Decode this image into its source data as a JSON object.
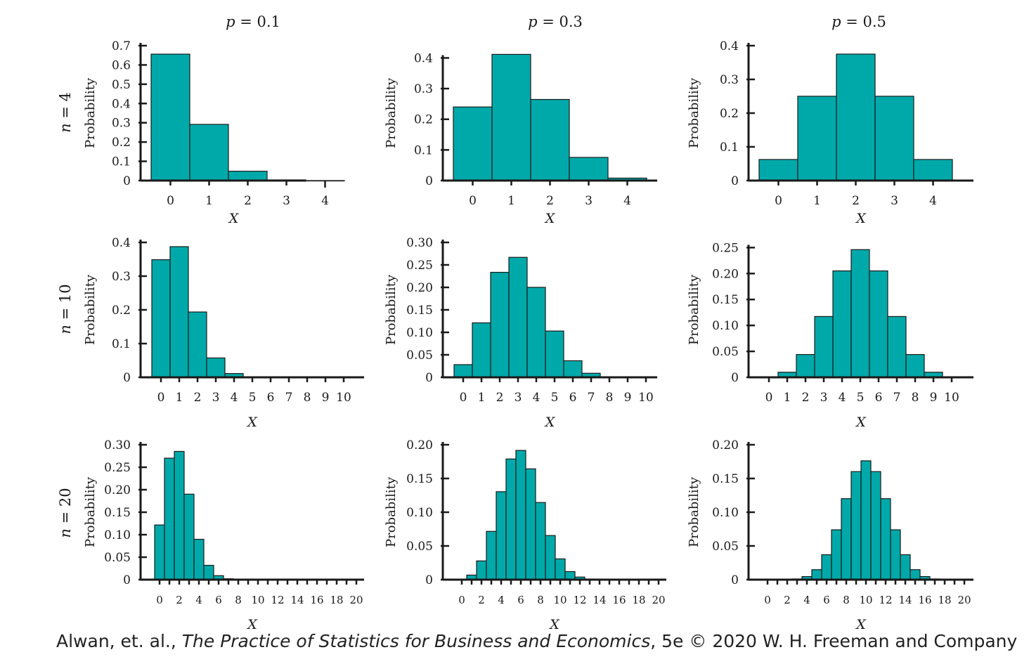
{
  "colors": {
    "bar": "#00a9a9",
    "edge": "#1a1a1a",
    "axis": "#1a1a1a",
    "text": "#1a1a1a"
  },
  "column_headers": [
    {
      "var": "p",
      "value": "0.1"
    },
    {
      "var": "p",
      "value": "0.3"
    },
    {
      "var": "p",
      "value": "0.5"
    }
  ],
  "row_headers": [
    {
      "var": "n",
      "value": "4"
    },
    {
      "var": "n",
      "value": "10"
    },
    {
      "var": "n",
      "value": "20"
    }
  ],
  "credit": {
    "authors": "Alwan, et. al., ",
    "book": "The Practice of Statistics for Business and Economics",
    "edition": ", 5e © 2020 W. H. Freeman and Company"
  },
  "chart_data": [
    {
      "type": "bar",
      "n": 4,
      "p": 0.1,
      "xlabel": "X",
      "ylabel": "Probability",
      "x": [
        0,
        1,
        2,
        3,
        4
      ],
      "values": [
        0.6561,
        0.2916,
        0.0486,
        0.0036,
        0.0001
      ],
      "ylim": [
        0,
        0.7
      ],
      "yticks": [
        "0",
        "0.1",
        "0.2",
        "0.3",
        "0.4",
        "0.5",
        "0.6",
        "0.7"
      ],
      "xticks": [
        "0",
        "1",
        "2",
        "3",
        "4"
      ]
    },
    {
      "type": "bar",
      "n": 4,
      "p": 0.3,
      "xlabel": "X",
      "ylabel": "Probability",
      "x": [
        0,
        1,
        2,
        3,
        4
      ],
      "values": [
        0.2401,
        0.4116,
        0.2646,
        0.0756,
        0.0081
      ],
      "ylim": [
        0,
        0.44
      ],
      "yticks": [
        "0",
        "0.1",
        "0.2",
        "0.3",
        "0.4"
      ],
      "xticks": [
        "0",
        "1",
        "2",
        "3",
        "4"
      ]
    },
    {
      "type": "bar",
      "n": 4,
      "p": 0.5,
      "xlabel": "X",
      "ylabel": "Probability",
      "x": [
        0,
        1,
        2,
        3,
        4
      ],
      "values": [
        0.0625,
        0.25,
        0.375,
        0.25,
        0.0625
      ],
      "ylim": [
        0,
        0.4
      ],
      "yticks": [
        "0",
        "0.1",
        "0.2",
        "0.3",
        "0.4"
      ],
      "xticks": [
        "0",
        "1",
        "2",
        "3",
        "4"
      ]
    },
    {
      "type": "bar",
      "n": 10,
      "p": 0.1,
      "xlabel": "X",
      "ylabel": "Probability",
      "x": [
        0,
        1,
        2,
        3,
        4,
        5,
        6,
        7,
        8,
        9,
        10
      ],
      "values": [
        0.3487,
        0.3874,
        0.1937,
        0.0574,
        0.0112,
        0.0015,
        0.0001,
        0,
        0,
        0,
        0
      ],
      "ylim": [
        0,
        0.4
      ],
      "yticks": [
        "0",
        "0.1",
        "0.2",
        "0.3",
        "0.4"
      ],
      "xticks": [
        "0",
        "1",
        "2",
        "3",
        "4",
        "5",
        "6",
        "7",
        "8",
        "9",
        "10"
      ]
    },
    {
      "type": "bar",
      "n": 10,
      "p": 0.3,
      "xlabel": "X",
      "ylabel": "Probability",
      "x": [
        0,
        1,
        2,
        3,
        4,
        5,
        6,
        7,
        8,
        9,
        10
      ],
      "values": [
        0.0282,
        0.1211,
        0.2335,
        0.2668,
        0.2001,
        0.1029,
        0.0368,
        0.009,
        0.0014,
        0.0001,
        0
      ],
      "ylim": [
        0,
        0.3
      ],
      "yticks": [
        "0",
        "0.05",
        "0.10",
        "0.15",
        "0.20",
        "0.25",
        "0.30"
      ],
      "xticks": [
        "0",
        "1",
        "2",
        "3",
        "4",
        "5",
        "6",
        "7",
        "8",
        "9",
        "10"
      ]
    },
    {
      "type": "bar",
      "n": 10,
      "p": 0.5,
      "xlabel": "X",
      "ylabel": "Probability",
      "x": [
        0,
        1,
        2,
        3,
        4,
        5,
        6,
        7,
        8,
        9,
        10
      ],
      "values": [
        0.001,
        0.0098,
        0.0439,
        0.1172,
        0.2051,
        0.2461,
        0.2051,
        0.1172,
        0.0439,
        0.0098,
        0.001
      ],
      "ylim": [
        0,
        0.26
      ],
      "yticks": [
        "0",
        "0.05",
        "0.10",
        "0.15",
        "0.20",
        "0.25"
      ],
      "xticks": [
        "0",
        "1",
        "2",
        "3",
        "4",
        "5",
        "6",
        "7",
        "8",
        "9",
        "10"
      ]
    },
    {
      "type": "bar",
      "n": 20,
      "p": 0.1,
      "xlabel": "X",
      "ylabel": "Probability",
      "x": [
        0,
        1,
        2,
        3,
        4,
        5,
        6,
        7,
        8,
        9,
        10,
        11,
        12,
        13,
        14,
        15,
        16,
        17,
        18,
        19,
        20
      ],
      "values": [
        0.1216,
        0.2702,
        0.2852,
        0.1901,
        0.0898,
        0.0319,
        0.0089,
        0.002,
        0.0004,
        0.0001,
        0,
        0,
        0,
        0,
        0,
        0,
        0,
        0,
        0,
        0,
        0
      ],
      "ylim": [
        0,
        0.3
      ],
      "yticks": [
        "0",
        "0.05",
        "0.10",
        "0.15",
        "0.20",
        "0.25",
        "0.30"
      ],
      "xticks": [
        "0",
        "2",
        "4",
        "6",
        "8",
        "10",
        "12",
        "14",
        "16",
        "18",
        "20"
      ]
    },
    {
      "type": "bar",
      "n": 20,
      "p": 0.3,
      "xlabel": "X",
      "ylabel": "Probability",
      "x": [
        0,
        1,
        2,
        3,
        4,
        5,
        6,
        7,
        8,
        9,
        10,
        11,
        12,
        13,
        14,
        15,
        16,
        17,
        18,
        19,
        20
      ],
      "values": [
        0.0008,
        0.0068,
        0.0278,
        0.0716,
        0.1304,
        0.1789,
        0.1916,
        0.1643,
        0.1144,
        0.0654,
        0.0308,
        0.012,
        0.0039,
        0.001,
        0.0002,
        0,
        0,
        0,
        0,
        0,
        0
      ],
      "ylim": [
        0,
        0.2
      ],
      "yticks": [
        "0",
        "0.05",
        "0.10",
        "0.15",
        "0.20"
      ],
      "xticks": [
        "0",
        "2",
        "4",
        "6",
        "8",
        "10",
        "12",
        "14",
        "16",
        "18",
        "20"
      ]
    },
    {
      "type": "bar",
      "n": 20,
      "p": 0.5,
      "xlabel": "X",
      "ylabel": "Probability",
      "x": [
        0,
        1,
        2,
        3,
        4,
        5,
        6,
        7,
        8,
        9,
        10,
        11,
        12,
        13,
        14,
        15,
        16,
        17,
        18,
        19,
        20
      ],
      "values": [
        0,
        0,
        0.0002,
        0.0011,
        0.0046,
        0.0148,
        0.037,
        0.0739,
        0.1201,
        0.1602,
        0.1762,
        0.1602,
        0.1201,
        0.0739,
        0.037,
        0.0148,
        0.0046,
        0.0011,
        0.0002,
        0,
        0
      ],
      "ylim": [
        0,
        0.2
      ],
      "yticks": [
        "0",
        "0.05",
        "0.10",
        "0.15",
        "0.20"
      ],
      "xticks": [
        "0",
        "2",
        "4",
        "6",
        "8",
        "10",
        "12",
        "14",
        "16",
        "18",
        "20"
      ]
    }
  ]
}
